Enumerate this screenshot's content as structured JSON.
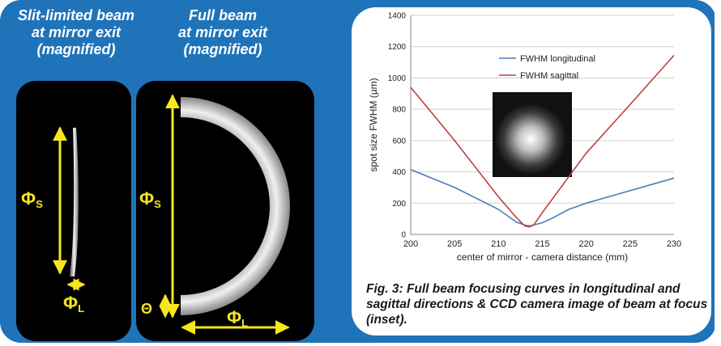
{
  "captions": {
    "left": [
      "Slit-limited beam",
      "at mirror exit",
      "(magnified)"
    ],
    "right": [
      "Full beam",
      "at mirror exit",
      "(magnified)"
    ]
  },
  "beam_labels": {
    "phi_s": "Φ",
    "phi_s_sub": "S",
    "phi_l": "Φ",
    "phi_l_sub": "L",
    "theta": "Θ"
  },
  "figure_caption": "Fig. 3: Full beam focusing curves in longitudinal and sagittal directions & CCD camera image of beam at focus (inset).",
  "colors": {
    "panel_blue": "#1f74b9",
    "annotation_yellow": "#f5e61e",
    "longitudinal": "#4a7ebb",
    "sagittal": "#c0403c"
  },
  "chart_data": {
    "type": "line",
    "xlabel": "center of mirror - camera distance (mm)",
    "ylabel": "spot size FWHM (µm)",
    "xlim": [
      200,
      230
    ],
    "ylim": [
      0,
      1400
    ],
    "xticks": [
      200,
      205,
      210,
      215,
      220,
      225,
      230
    ],
    "yticks": [
      0,
      200,
      400,
      600,
      800,
      1000,
      1200,
      1400
    ],
    "grid": "horizontal",
    "legend": "top-center",
    "inset": "CCD camera image of beam at focus",
    "series": [
      {
        "name": "FWHM longitudinal",
        "color": "#4a7ebb",
        "x": [
          200,
          205,
          210,
          212,
          213,
          213.5,
          214,
          215,
          216,
          217,
          218,
          219,
          220,
          225,
          230
        ],
        "y": [
          415,
          300,
          160,
          80,
          60,
          55,
          60,
          75,
          100,
          130,
          160,
          180,
          200,
          280,
          360
        ]
      },
      {
        "name": "FWHM sagittal",
        "color": "#c0403c",
        "x": [
          200,
          205,
          210,
          212,
          213,
          213.5,
          214,
          215,
          220,
          225,
          230
        ],
        "y": [
          940,
          600,
          240,
          110,
          55,
          48,
          60,
          140,
          520,
          830,
          1145
        ]
      }
    ]
  }
}
